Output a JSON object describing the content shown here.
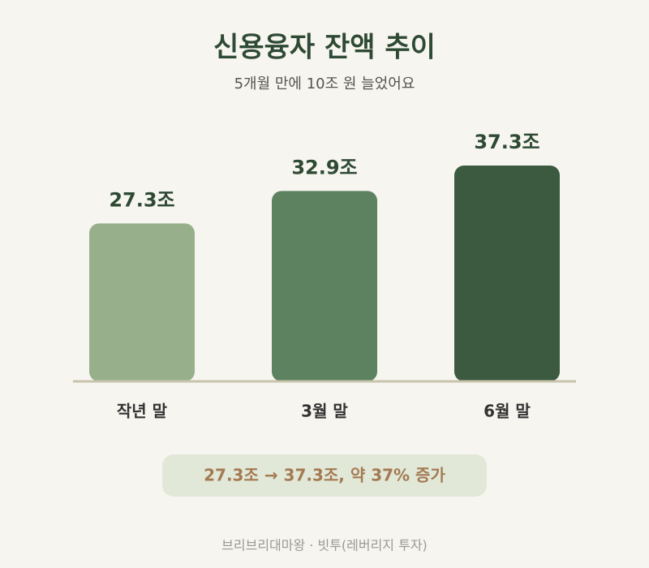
{
  "chart_data": {
    "type": "bar",
    "title": "신용융자 잔액 추이",
    "subtitle": "5개월 만에 10조 원 늘었어요",
    "categories": [
      "작년 말",
      "3월 말",
      "6월 말"
    ],
    "values": [
      27.3,
      32.9,
      37.3
    ],
    "value_labels": [
      "27.3조",
      "32.9조",
      "37.3조"
    ],
    "colors": [
      "#97b08b",
      "#5c8260",
      "#3b5a40"
    ],
    "annotation": "27.3조 → 37.3조, 약 37% 증가",
    "footer": "브리브리대마왕 · 빗투(레버리지 투자)"
  }
}
